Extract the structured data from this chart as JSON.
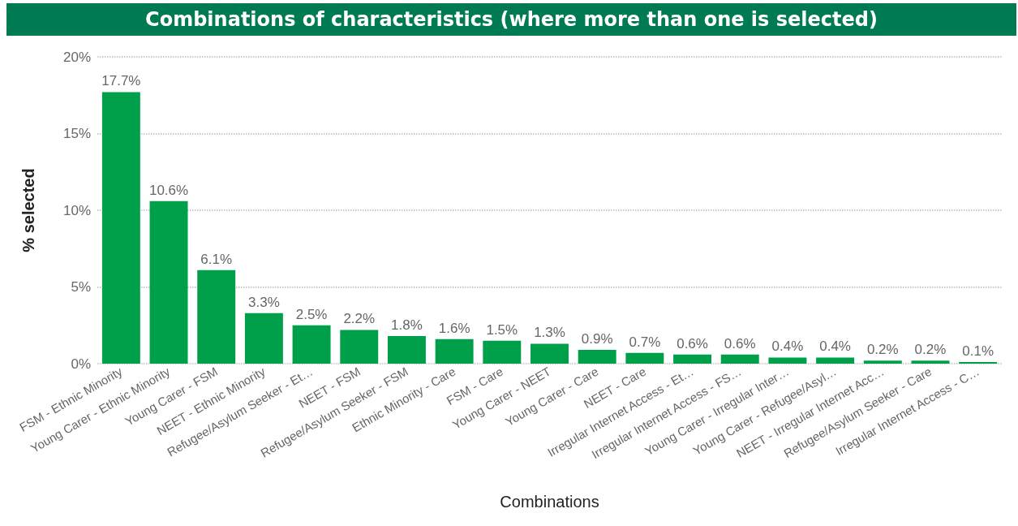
{
  "chart_data": {
    "type": "bar",
    "title": "Combinations of characteristics (where more than one is selected)",
    "xlabel": "Combinations",
    "ylabel": "% selected",
    "categories": [
      "FSM - Ethnic Minority",
      "Young Carer - Ethnic Minority",
      "Young Carer - FSM",
      "NEET - Ethnic Minority",
      "Refugee/Asylum Seeker - Et…",
      "NEET - FSM",
      "Refugee/Asylum Seeker - FSM",
      "Ethnic Minority - Care",
      "FSM - Care",
      "Young Carer - NEET",
      "Young Carer - Care",
      "NEET - Care",
      "Irregular Internet Access - Et…",
      "Irregular Internet Access - FS…",
      "Young Carer - Irregular Inter…",
      "Young Carer - Refugee/Asyl…",
      "NEET - Irregular Internet Acc…",
      "Refugee/Asylum Seeker - Care",
      "Irregular Internet Access - C…"
    ],
    "values": [
      17.7,
      10.6,
      6.1,
      3.3,
      2.5,
      2.2,
      1.8,
      1.6,
      1.5,
      1.3,
      0.9,
      0.7,
      0.6,
      0.6,
      0.4,
      0.4,
      0.2,
      0.2,
      0.1
    ],
    "value_labels": [
      "17.7%",
      "10.6%",
      "6.1%",
      "3.3%",
      "2.5%",
      "2.2%",
      "1.8%",
      "1.6%",
      "1.5%",
      "1.3%",
      "0.9%",
      "0.7%",
      "0.6%",
      "0.6%",
      "0.4%",
      "0.4%",
      "0.2%",
      "0.2%",
      "0.1%"
    ],
    "color": "#00a04b",
    "ylim": [
      0,
      20
    ],
    "yticks": [
      {
        "value": 0,
        "label": "0%"
      },
      {
        "value": 5,
        "label": "5%"
      },
      {
        "value": 10,
        "label": "10%"
      },
      {
        "value": 15,
        "label": "15%"
      },
      {
        "value": 20,
        "label": "20%"
      }
    ],
    "grid": "y"
  }
}
